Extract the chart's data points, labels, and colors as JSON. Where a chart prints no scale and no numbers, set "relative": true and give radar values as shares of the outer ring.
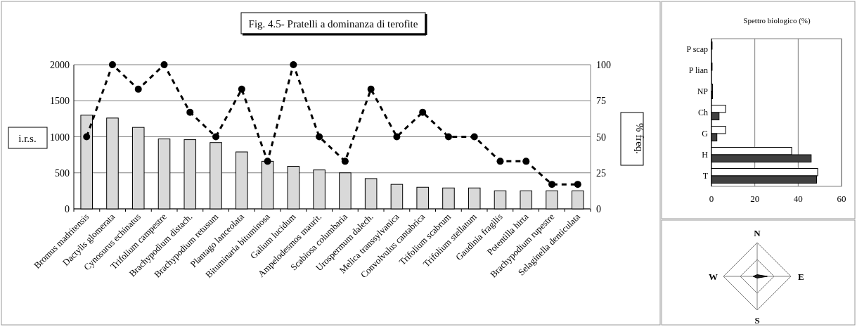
{
  "chart_data": [
    {
      "type": "bar",
      "title": "Fig. 4.5- Pratelli a dominanza di terofite",
      "ylabel": "i.r.s.",
      "y2label": "% freq.",
      "categories": [
        "Bromus madritensis",
        "Dactylis glomerata",
        "Cynosurus echinatus",
        "Trifolium campestre",
        "Brachypodium distach.",
        "Brachypodium retusum",
        "Plantago lanceolata",
        "Bituminaria bituminosa",
        "Galium lucidum",
        "Ampelodesmos maurit.",
        "Scabiosa columbaria",
        "Urospermum dalech.",
        "Melica transsylvanica",
        "Convolvulus cantabrica",
        "Trifolium scabrum",
        "Trifolium stellatum",
        "Gaudinia fragilis",
        "Potentilla hirta",
        "Brachypodium rupestre",
        "Selaginella denticulata"
      ],
      "series": [
        {
          "type": "bar",
          "color": "#d9d9d9",
          "values": [
            1300,
            1260,
            1130,
            970,
            960,
            920,
            790,
            660,
            590,
            540,
            500,
            420,
            340,
            300,
            290,
            290,
            250,
            250,
            250,
            250
          ]
        },
        {
          "type": "line",
          "axis": "y2",
          "color": "#000000",
          "marker": "circle",
          "line_style": "dashed",
          "values": [
            50,
            100,
            83,
            100,
            67,
            50,
            83,
            33,
            100,
            50,
            33,
            83,
            50,
            67,
            50,
            50,
            33,
            33,
            17,
            17
          ]
        }
      ],
      "ylim": [
        0,
        2000
      ],
      "yticks": [
        0,
        500,
        1000,
        1500,
        2000
      ],
      "y2lim": [
        0,
        100
      ],
      "y2ticks": [
        0,
        25,
        50,
        75,
        100
      ],
      "grid": "y"
    },
    {
      "type": "bar",
      "orientation": "horizontal",
      "title": "Spettro biologico (%)",
      "categories": [
        "P scap",
        "P lian",
        "NP",
        "Ch",
        "G",
        "H",
        "T"
      ],
      "series": [
        {
          "color": "#ffffff",
          "values": [
            0.3,
            0.3,
            0.5,
            6.5,
            6.5,
            37,
            49
          ]
        },
        {
          "color": "#404040",
          "values": [
            0,
            0,
            0.5,
            3.5,
            2.5,
            46,
            48.5
          ]
        }
      ],
      "xlim": [
        0,
        60
      ],
      "xticks": [
        0,
        20,
        40,
        60
      ],
      "grid": "x"
    },
    {
      "type": "radar",
      "categories": [
        "N",
        "E",
        "S",
        "W"
      ],
      "relative": true,
      "series": [
        {
          "color": "#202020",
          "values": [
            0.05,
            0.3,
            0.05,
            0.12
          ]
        }
      ],
      "grid": true
    }
  ]
}
